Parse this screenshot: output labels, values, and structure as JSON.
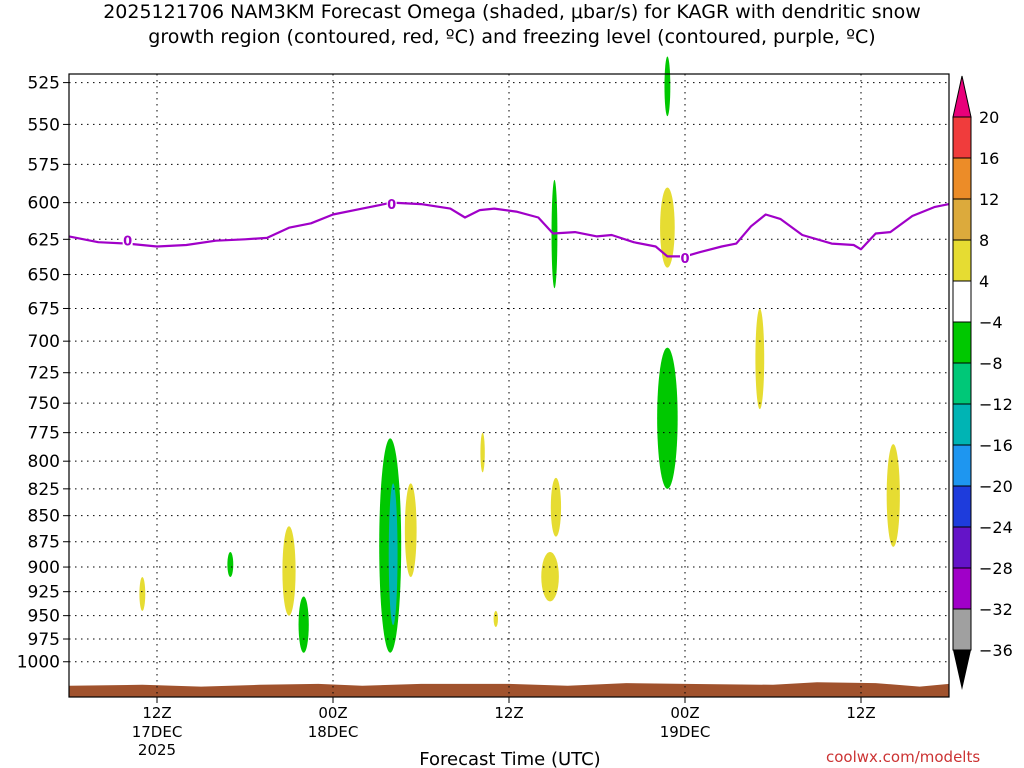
{
  "title": {
    "line1": "2025121706 NAM3KM Forecast Omega (shaded, μbar/s) for KAGR with dendritic snow",
    "line2": "growth region (contoured, red, ºC) and freezing level (contoured, purple, ºC)"
  },
  "credit": "coolwx.com/modelts",
  "colors": {
    "freezing_level": "#a000c8",
    "terrain": "#a0522d",
    "omega_pos_4_8": "#e6dc32",
    "omega_neg_4_8": "#00dc00"
  },
  "chart_data": {
    "type": "time-height cross section",
    "xlabel": "Forecast Time (UTC)",
    "x_range_hours": [
      0,
      60
    ],
    "y_axis": {
      "label": "",
      "scale": "pressure (log-p, inverted)",
      "range_mb": [
        1040,
        520
      ],
      "ticks": [
        525,
        550,
        575,
        600,
        625,
        650,
        675,
        700,
        725,
        750,
        775,
        800,
        825,
        850,
        875,
        900,
        925,
        950,
        975,
        1000
      ]
    },
    "x_ticks": [
      {
        "hour": 6,
        "label": "12Z",
        "date": "17DEC",
        "year": "2025"
      },
      {
        "hour": 18,
        "label": "00Z",
        "date": "18DEC",
        "year": ""
      },
      {
        "hour": 30,
        "label": "12Z",
        "date": "",
        "year": ""
      },
      {
        "hour": 42,
        "label": "00Z",
        "date": "19DEC",
        "year": ""
      },
      {
        "hour": 54,
        "label": "12Z",
        "date": "",
        "year": ""
      }
    ],
    "grid": true,
    "colorbar": {
      "placement": "right",
      "levels": [
        {
          "label": "20",
          "color": "#e8007a"
        },
        {
          "label": "16",
          "color": "#f03c3c"
        },
        {
          "label": "12",
          "color": "#ec8c28"
        },
        {
          "label": "8",
          "color": "#dcaa3c"
        },
        {
          "label": "4",
          "color": "#e6dc32"
        },
        {
          "label": "−4",
          "color": "#ffffff"
        },
        {
          "label": "−8",
          "color": "#00c800"
        },
        {
          "label": "−12",
          "color": "#00c878"
        },
        {
          "label": "−16",
          "color": "#00b4b4"
        },
        {
          "label": "−20",
          "color": "#1e96f0"
        },
        {
          "label": "−24",
          "color": "#1e3cdc"
        },
        {
          "label": "−28",
          "color": "#6414c8"
        },
        {
          "label": "−32",
          "color": "#a000c8"
        },
        {
          "label": "−36",
          "color": "#a0a0a0"
        }
      ],
      "bottom_color": "#000000"
    },
    "freezing_level_mb": [
      {
        "h": 0,
        "p": 623
      },
      {
        "h": 2,
        "p": 627
      },
      {
        "h": 4,
        "p": 628
      },
      {
        "h": 6,
        "p": 630
      },
      {
        "h": 8,
        "p": 629
      },
      {
        "h": 10,
        "p": 626
      },
      {
        "h": 12,
        "p": 625
      },
      {
        "h": 13.5,
        "p": 624
      },
      {
        "h": 15,
        "p": 617
      },
      {
        "h": 16.5,
        "p": 614
      },
      {
        "h": 18,
        "p": 608
      },
      {
        "h": 20,
        "p": 604
      },
      {
        "h": 22,
        "p": 600
      },
      {
        "h": 24,
        "p": 601
      },
      {
        "h": 26,
        "p": 604
      },
      {
        "h": 27,
        "p": 610
      },
      {
        "h": 28,
        "p": 605
      },
      {
        "h": 29,
        "p": 604
      },
      {
        "h": 30.5,
        "p": 606
      },
      {
        "h": 32,
        "p": 610
      },
      {
        "h": 33,
        "p": 621
      },
      {
        "h": 34.5,
        "p": 620
      },
      {
        "h": 36,
        "p": 623
      },
      {
        "h": 37,
        "p": 622
      },
      {
        "h": 38.5,
        "p": 627
      },
      {
        "h": 40,
        "p": 630
      },
      {
        "h": 40.8,
        "p": 637
      },
      {
        "h": 42,
        "p": 637
      },
      {
        "h": 43,
        "p": 634
      },
      {
        "h": 44.5,
        "p": 630
      },
      {
        "h": 45.5,
        "p": 628
      },
      {
        "h": 46.5,
        "p": 616
      },
      {
        "h": 47.5,
        "p": 608
      },
      {
        "h": 48.5,
        "p": 611
      },
      {
        "h": 50,
        "p": 622
      },
      {
        "h": 52,
        "p": 628
      },
      {
        "h": 53.5,
        "p": 629
      },
      {
        "h": 54,
        "p": 632
      },
      {
        "h": 55,
        "p": 621
      },
      {
        "h": 56,
        "p": 620
      },
      {
        "h": 57.5,
        "p": 609
      },
      {
        "h": 59,
        "p": 603
      },
      {
        "h": 60,
        "p": 601
      }
    ],
    "freezing_level_labels": [
      {
        "h": 4,
        "p": 626,
        "text": "0"
      },
      {
        "h": 22,
        "p": 601,
        "text": "0"
      },
      {
        "h": 42,
        "p": 638,
        "text": "0"
      }
    ],
    "omega_regions": [
      {
        "h": 5,
        "p_top": 910,
        "p_bot": 945,
        "half_width_h": 0.2,
        "value": 4
      },
      {
        "h": 11,
        "p_top": 885,
        "p_bot": 910,
        "half_width_h": 0.2,
        "value": -6
      },
      {
        "h": 15,
        "p_top": 860,
        "p_bot": 950,
        "half_width_h": 0.45,
        "value": 4
      },
      {
        "h": 16,
        "p_top": 930,
        "p_bot": 990,
        "half_width_h": 0.35,
        "value": -6
      },
      {
        "h": 21.9,
        "p_top": 780,
        "p_bot": 990,
        "half_width_h": 0.75,
        "value": -6
      },
      {
        "h": 22.1,
        "p_top": 820,
        "p_bot": 960,
        "half_width_h": 0.3,
        "value": -14
      },
      {
        "h": 23.3,
        "p_top": 820,
        "p_bot": 910,
        "half_width_h": 0.4,
        "value": 4
      },
      {
        "h": 28.2,
        "p_top": 775,
        "p_bot": 810,
        "half_width_h": 0.15,
        "value": 4
      },
      {
        "h": 29.1,
        "p_top": 945,
        "p_bot": 962,
        "half_width_h": 0.15,
        "value": 4
      },
      {
        "h": 33.1,
        "p_top": 585,
        "p_bot": 660,
        "half_width_h": 0.2,
        "value": -6
      },
      {
        "h": 33.2,
        "p_top": 815,
        "p_bot": 870,
        "half_width_h": 0.35,
        "value": 4
      },
      {
        "h": 32.8,
        "p_top": 885,
        "p_bot": 935,
        "half_width_h": 0.6,
        "value": 4
      },
      {
        "h": 40.8,
        "p_top": 510,
        "p_bot": 545,
        "half_width_h": 0.2,
        "value": -6
      },
      {
        "h": 40.8,
        "p_top": 590,
        "p_bot": 645,
        "half_width_h": 0.5,
        "value": 4
      },
      {
        "h": 40.8,
        "p_top": 705,
        "p_bot": 825,
        "half_width_h": 0.7,
        "value": -6
      },
      {
        "h": 47.1,
        "p_top": 675,
        "p_bot": 755,
        "half_width_h": 0.3,
        "value": 4
      },
      {
        "h": 56.2,
        "p_top": 785,
        "p_bot": 880,
        "half_width_h": 0.45,
        "value": 4
      }
    ],
    "terrain_top_mb": [
      {
        "h": 0,
        "p": 1027
      },
      {
        "h": 5,
        "p": 1026
      },
      {
        "h": 9,
        "p": 1028
      },
      {
        "h": 13,
        "p": 1026
      },
      {
        "h": 17,
        "p": 1025
      },
      {
        "h": 20,
        "p": 1027
      },
      {
        "h": 24,
        "p": 1025
      },
      {
        "h": 30,
        "p": 1025
      },
      {
        "h": 34,
        "p": 1027
      },
      {
        "h": 38,
        "p": 1024
      },
      {
        "h": 42,
        "p": 1025
      },
      {
        "h": 48,
        "p": 1026
      },
      {
        "h": 51,
        "p": 1023
      },
      {
        "h": 55,
        "p": 1024
      },
      {
        "h": 58,
        "p": 1028
      },
      {
        "h": 60,
        "p": 1025
      }
    ]
  }
}
